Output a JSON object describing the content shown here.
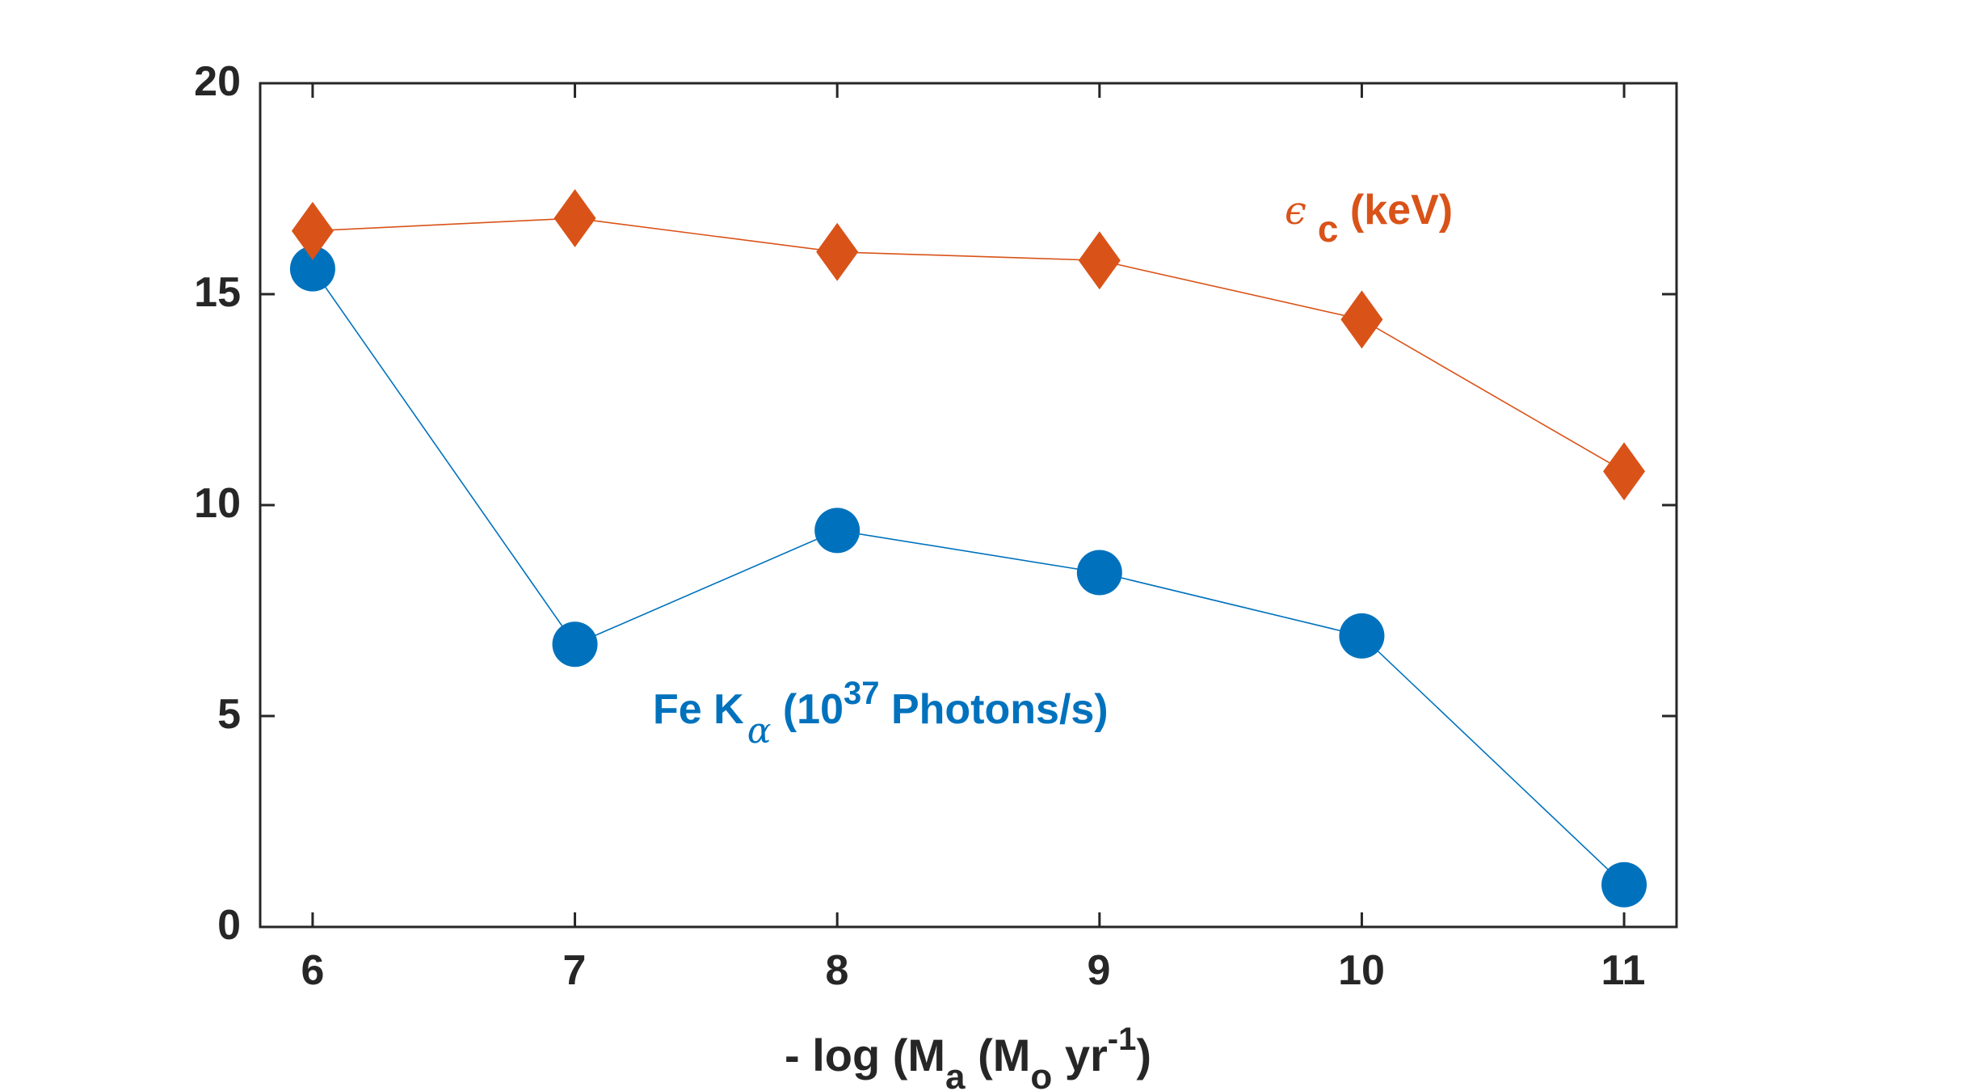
{
  "colors": {
    "series_kalpha": "#0072BD",
    "series_ec": "#D95319",
    "axis": "#262626"
  },
  "chart_data": {
    "type": "line",
    "x": [
      6,
      7,
      8,
      9,
      10,
      11
    ],
    "xlim": [
      5.8,
      11.2
    ],
    "ylim": [
      0,
      20
    ],
    "xticks": [
      "6",
      "7",
      "8",
      "9",
      "10",
      "11"
    ],
    "yticks": [
      "0",
      "5",
      "10",
      "15",
      "20"
    ],
    "xlabel": {
      "prefix": "- log (M",
      "sub1": "a",
      "mid": " (M",
      "sub2": "o",
      "mid2": " yr",
      "sup": "-1",
      "suffix": ")"
    },
    "grid": false,
    "series": [
      {
        "name": "Fe K-alpha",
        "marker": "circle",
        "color": "#0072BD",
        "values": [
          15.6,
          6.7,
          9.4,
          8.4,
          6.9,
          1.0
        ],
        "label": {
          "text1": "Fe K",
          "sub": "α",
          "text2": " (10",
          "sup": "37",
          "text3": " Photons/s)"
        }
      },
      {
        "name": "epsilon_c",
        "marker": "diamond",
        "color": "#D95319",
        "values": [
          16.5,
          16.8,
          16.0,
          15.8,
          14.4,
          10.8
        ],
        "label": {
          "greek": "ϵ",
          "sub": "c",
          "text": " (keV)"
        }
      }
    ]
  }
}
